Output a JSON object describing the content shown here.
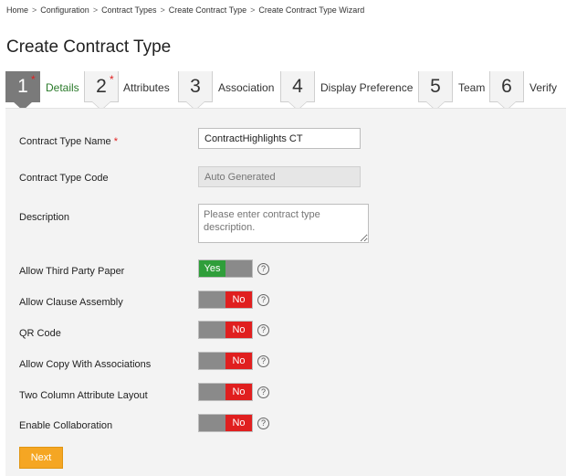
{
  "breadcrumb": [
    "Home",
    "Configuration",
    "Contract Types",
    "Create Contract Type",
    "Create Contract Type Wizard"
  ],
  "breadcrumb_sep": ">",
  "page_title": "Create Contract Type",
  "steps": [
    {
      "number": "1",
      "label": "Details",
      "required": "*"
    },
    {
      "number": "2",
      "label": "Attributes",
      "required": "*"
    },
    {
      "number": "3",
      "label": "Association"
    },
    {
      "number": "4",
      "label": "Display Preference"
    },
    {
      "number": "5",
      "label": "Team"
    },
    {
      "number": "6",
      "label": "Verify"
    }
  ],
  "form": {
    "contract_type_name_label": "Contract Type Name",
    "required_marker": "*",
    "contract_type_name_value": "ContractHighlights CT",
    "contract_type_code_label": "Contract Type Code",
    "contract_type_code_placeholder": "Auto Generated",
    "description_label": "Description",
    "description_placeholder": "Please enter contract type description.",
    "toggles": [
      {
        "label": "Allow Third Party Paper",
        "value": "Yes"
      },
      {
        "label": "Allow Clause Assembly",
        "value": "No"
      },
      {
        "label": "QR Code",
        "value": "No"
      },
      {
        "label": "Allow Copy With Associations",
        "value": "No"
      },
      {
        "label": "Two Column Attribute Layout",
        "value": "No"
      },
      {
        "label": "Enable Collaboration",
        "value": "No"
      }
    ],
    "help_glyph": "?",
    "next_label": "Next"
  },
  "colors": {
    "active_step": "#7a7a7a",
    "active_step_label": "#2a7a2a",
    "yes": "#2f9e3a",
    "no": "#e01f1f",
    "next_button": "#f5a623",
    "required": "#e02020"
  }
}
